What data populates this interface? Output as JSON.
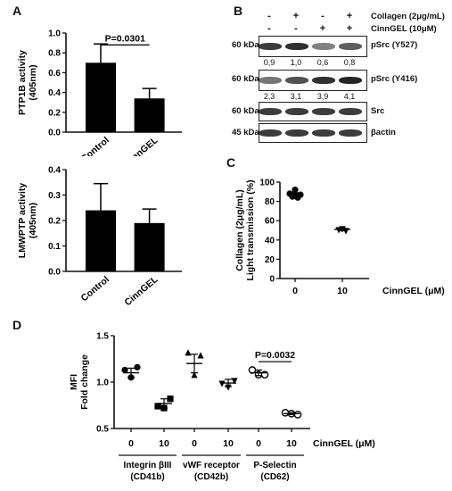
{
  "panels": {
    "a": "A",
    "b": "B",
    "c": "C",
    "d": "D"
  },
  "western": {
    "conditions": [
      {
        "label": "Collagen (2μg/mL)",
        "signs": [
          "-",
          "+",
          "-",
          "+"
        ]
      },
      {
        "label": "CinnGEL (10μM)",
        "signs": [
          "-",
          "-",
          "+",
          "+"
        ]
      }
    ],
    "blots": [
      {
        "kda": "60 kDa",
        "label": "pSrc (Y527)",
        "quant": [
          "0,9",
          "1,0",
          "0,6",
          "0,8"
        ],
        "intensity": [
          0.85,
          0.9,
          0.55,
          0.7
        ]
      },
      {
        "kda": "60 kDa",
        "label": "pSrc (Y416)",
        "quant": [
          "2,3",
          "3,1",
          "3,9",
          "4,1"
        ],
        "intensity": [
          0.6,
          0.75,
          0.9,
          0.95
        ]
      },
      {
        "kda": "60 kDa",
        "label": "Src",
        "quant": [],
        "intensity": [
          0.85,
          0.85,
          0.85,
          0.85
        ]
      },
      {
        "kda": "45 kDa",
        "label": "βactin",
        "quant": [],
        "intensity": [
          0.85,
          0.85,
          0.85,
          0.85
        ]
      }
    ]
  },
  "chart_data": [
    {
      "id": "ptp1b",
      "type": "bar",
      "categories": [
        "Control",
        "CinnGEL"
      ],
      "values": [
        0.7,
        0.34
      ],
      "errors": [
        0.19,
        0.1
      ],
      "ylabel": "PTP1B activity\n(405nm)",
      "ylim": [
        0,
        1.0
      ],
      "yticks": [
        "0.0",
        "0.2",
        "0.4",
        "0.6",
        "0.8",
        "1.0"
      ],
      "annotation": "P=0.0301"
    },
    {
      "id": "lmwptp",
      "type": "bar",
      "categories": [
        "Control",
        "CinnGEL"
      ],
      "values": [
        0.24,
        0.19
      ],
      "errors": [
        0.105,
        0.055
      ],
      "ylabel": "LMWPTP activity\n(405nm)",
      "ylim": [
        0,
        0.4
      ],
      "yticks": [
        "0.0",
        "0.1",
        "0.2",
        "0.3",
        "0.4"
      ]
    },
    {
      "id": "collagen",
      "type": "scatter",
      "categories": [
        "0",
        "10"
      ],
      "points": [
        [
          88,
          86,
          87,
          85,
          92,
          84
        ],
        [
          51,
          52,
          50
        ]
      ],
      "means": [
        87,
        51
      ],
      "sem": [
        2,
        1.5
      ],
      "ylabel": "Collagen (2μg/mL)\nLight transmission (%)",
      "ylim": [
        0,
        100
      ],
      "yticks": [
        "0",
        "20",
        "40",
        "60",
        "80",
        "100"
      ],
      "xlabel": "CinnGEL (μM)"
    },
    {
      "id": "mfi",
      "type": "scatter",
      "categories": [
        "0",
        "10",
        "0",
        "10",
        "0",
        "10"
      ],
      "points": [
        [
          1.13,
          1.05,
          1.16
        ],
        [
          0.74,
          0.72,
          0.82
        ],
        [
          1.31,
          1.07,
          1.28
        ],
        [
          0.99,
          0.95,
          1.02
        ],
        [
          1.13,
          1.08,
          1.08
        ],
        [
          0.67,
          0.66,
          0.65
        ]
      ],
      "markers": [
        "circle",
        "square",
        "triangle",
        "triangle-down",
        "circle-open",
        "circle-open"
      ],
      "means": [
        1.1,
        0.77,
        1.2,
        0.99,
        1.1,
        0.66
      ],
      "sem": [
        0.05,
        0.05,
        0.1,
        0.04,
        0.03,
        0.01
      ],
      "ylabel": "MFI\nFold change",
      "ylim": [
        0.5,
        1.5
      ],
      "yticks": [
        "0.5",
        "1.0",
        "1.5"
      ],
      "xlabel": "CinnGEL (μM)",
      "groups": [
        {
          "name": "Integrin βIII",
          "sub": "(CD41b)"
        },
        {
          "name": "vWF receptor",
          "sub": "(CD42b)"
        },
        {
          "name": "P-Selectin",
          "sub": "(CD62)"
        }
      ],
      "annotation": "P=0.0032"
    }
  ]
}
